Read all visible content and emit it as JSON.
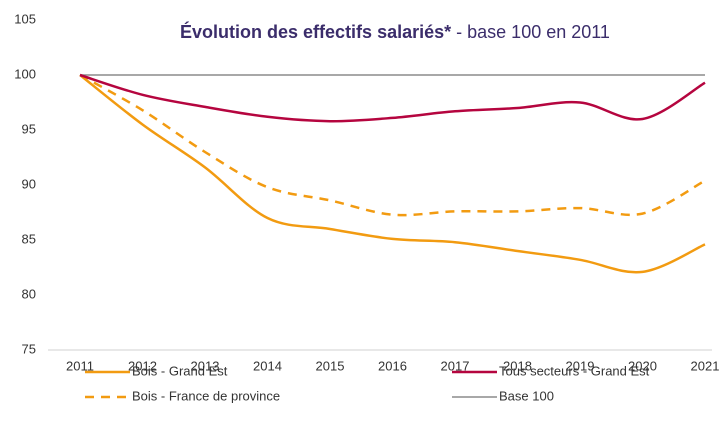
{
  "chart_data": {
    "type": "line",
    "title": "Évolution des effectifs salariés*",
    "subtitle": "- base 100 en 2011",
    "categories": [
      "2011",
      "2012",
      "2013",
      "2014",
      "2015",
      "2016",
      "2017",
      "2018",
      "2019",
      "2020",
      "2021"
    ],
    "series": [
      {
        "name": "Bois - Grand Est",
        "color": "#f29b11",
        "dashed": false,
        "values": [
          100,
          95.5,
          91.6,
          87,
          86,
          85.1,
          84.8,
          84,
          83.2,
          82.1,
          84.6
        ]
      },
      {
        "name": "Tous secteurs - Grand Est",
        "color": "#b5053f",
        "dashed": false,
        "values": [
          100,
          98.2,
          97.1,
          96.2,
          95.8,
          96.1,
          96.7,
          97.0,
          97.5,
          96.0,
          99.3
        ]
      },
      {
        "name": "Bois - France de province",
        "color": "#f29b11",
        "dashed": true,
        "values": [
          100,
          96.8,
          93.0,
          89.8,
          88.6,
          87.3,
          87.6,
          87.6,
          87.9,
          87.4,
          90.4
        ]
      },
      {
        "name": "Base 100",
        "color": "#8c8c8c",
        "dashed": false,
        "values": [
          100,
          100,
          100,
          100,
          100,
          100,
          100,
          100,
          100,
          100,
          100
        ]
      }
    ],
    "ylim": [
      75,
      105
    ],
    "yticks": [
      75,
      80,
      85,
      90,
      95,
      100,
      105
    ],
    "grid": false
  }
}
